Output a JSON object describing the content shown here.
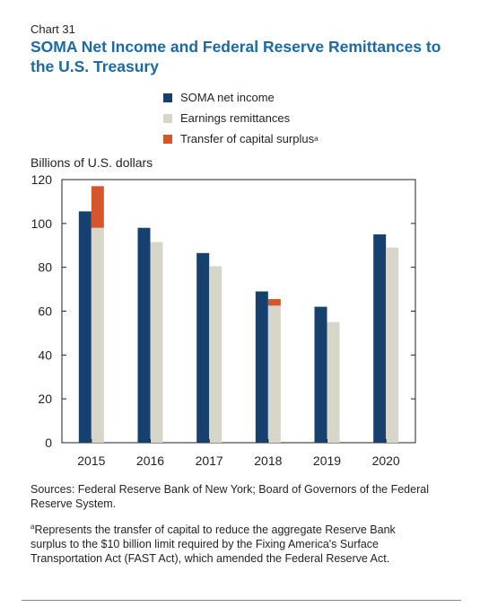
{
  "chart_label": "Chart 31",
  "title": "SOMA Net Income and Federal Reserve Remittances to the U.S. Treasury",
  "legend": [
    {
      "label": "SOMA net income",
      "color": "#16416f",
      "sup": ""
    },
    {
      "label": "Earnings remittances",
      "color": "#d8d5c9",
      "sup": ""
    },
    {
      "label": "Transfer of capital surplus",
      "color": "#d5562b",
      "sup": "a"
    }
  ],
  "source": "Sources: Federal Reserve Bank of New York; Board of Governors of the Federal Reserve System.",
  "note": {
    "marker": "a",
    "text": "Represents the transfer of capital to reduce the aggregate Reserve Bank surplus to the $10 billion limit required by the Fixing America's Surface Transportation Act (FAST Act), which amended the Federal Reserve Act."
  },
  "chart_data": {
    "type": "bar",
    "ylabel": "Billions of U.S. dollars",
    "ylim": [
      0,
      120
    ],
    "yticks": [
      0,
      20,
      40,
      60,
      80,
      100,
      120
    ],
    "categories": [
      "2015",
      "2016",
      "2017",
      "2018",
      "2019",
      "2020"
    ],
    "series": [
      {
        "name": "SOMA net income",
        "color": "#16416f",
        "values": [
          105.5,
          98,
          86.5,
          69,
          62,
          95
        ]
      },
      {
        "name": "Earnings remittances",
        "color": "#d8d5c9",
        "values": [
          98,
          91.5,
          80.5,
          62.5,
          55,
          89
        ]
      },
      {
        "name": "Transfer of capital surplus",
        "color": "#d5562b",
        "values": [
          19,
          0,
          0,
          3,
          0,
          0
        ],
        "stacked_on": "Earnings remittances"
      }
    ],
    "grid": false
  }
}
